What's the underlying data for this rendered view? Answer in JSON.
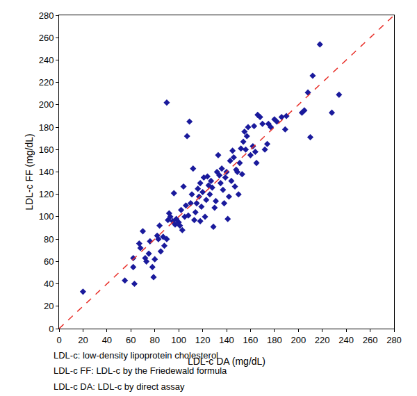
{
  "chart_data": {
    "type": "scatter",
    "x_label": "LDL-c DA (mg/dL)",
    "y_label": "LDL-c FF (mg/dL)",
    "annotations": [
      "LDL-c: low-density lipoprotein cholesterol",
      "LDL-c FF: LDL-c by the Friedewald formula",
      "LDL-c DA: LDL-c by direct assay"
    ],
    "xlim": [
      0,
      280
    ],
    "xticks": [
      0,
      20,
      40,
      60,
      80,
      100,
      120,
      140,
      160,
      180,
      200,
      220,
      240,
      260,
      280
    ],
    "ylim": [
      0,
      280
    ],
    "yticks": [
      0,
      20,
      40,
      60,
      80,
      100,
      120,
      140,
      160,
      180,
      200,
      220,
      240,
      260,
      280
    ],
    "grid": false,
    "series": [
      {
        "type": "scatter",
        "color": "#1a1a9c",
        "marker": "diamond",
        "x": [
          20,
          55,
          62,
          62,
          63,
          67,
          68,
          70,
          72,
          73,
          75,
          76,
          78,
          79,
          80,
          82,
          83,
          84,
          85,
          87,
          88,
          90,
          90,
          91,
          92,
          93,
          95,
          96,
          97,
          98,
          100,
          101,
          102,
          103,
          104,
          105,
          106,
          107,
          108,
          109,
          110,
          111,
          112,
          113,
          114,
          115,
          116,
          117,
          118,
          118,
          119,
          120,
          121,
          122,
          123,
          124,
          125,
          126,
          127,
          128,
          129,
          130,
          131,
          132,
          133,
          134,
          135,
          136,
          137,
          138,
          139,
          140,
          141,
          142,
          143,
          144,
          145,
          146,
          147,
          148,
          149,
          150,
          151,
          152,
          153,
          154,
          155,
          156,
          157,
          158,
          160,
          162,
          163,
          164,
          165,
          166,
          168,
          170,
          172,
          174,
          175,
          177,
          180,
          182,
          186,
          189,
          190,
          203,
          205,
          208,
          210,
          212,
          218,
          228,
          234
        ],
        "values": [
          33,
          43,
          55,
          63,
          40,
          76,
          72,
          87,
          63,
          60,
          67,
          78,
          55,
          46,
          62,
          83,
          80,
          92,
          69,
          82,
          74,
          202,
          80,
          97,
          103,
          100,
          96,
          121,
          93,
          98,
          95,
          92,
          106,
          88,
          127,
          100,
          110,
          172,
          101,
          185,
          112,
          120,
          143,
          97,
          104,
          112,
          125,
          118,
          96,
          130,
          109,
          122,
          135,
          100,
          115,
          136,
          128,
          120,
          132,
          126,
          91,
          108,
          114,
          140,
          155,
          137,
          130,
          143,
          124,
          112,
          135,
          140,
          98,
          118,
          150,
          132,
          159,
          153,
          127,
          142,
          140,
          120,
          148,
          161,
          138,
          167,
          176,
          160,
          172,
          180,
          155,
          163,
          181,
          158,
          148,
          191,
          189,
          183,
          160,
          165,
          183,
          180,
          187,
          185,
          189,
          178,
          190,
          193,
          195,
          211,
          171,
          226,
          254,
          193,
          209
        ]
      },
      {
        "type": "line",
        "color": "#e8302a",
        "line_style": "dash",
        "x": [
          0,
          280
        ],
        "values": [
          0,
          280
        ]
      }
    ]
  }
}
